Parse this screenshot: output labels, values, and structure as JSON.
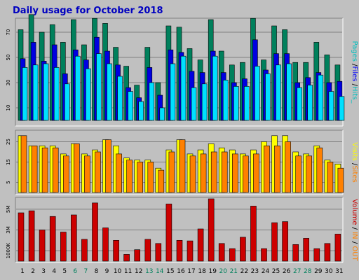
{
  "chart_data": {
    "type": "bar",
    "title": "Daily usage for October 2018",
    "categories": [
      "1",
      "2",
      "3",
      "4",
      "5",
      "6",
      "7",
      "8",
      "9",
      "10",
      "11",
      "12",
      "13",
      "14",
      "15",
      "16",
      "17",
      "18",
      "19",
      "20",
      "21",
      "22",
      "23",
      "24",
      "25",
      "26",
      "27",
      "28",
      "29",
      "30",
      "31"
    ],
    "weekend_days": [
      "6",
      "7",
      "13",
      "14",
      "20",
      "21",
      "27",
      "28"
    ],
    "panels": [
      {
        "id": "pages-files-hits",
        "side_label_parts": [
          {
            "text": "Pages",
            "color": "#00c0c0"
          },
          {
            "text": " /",
            "color": "#000000"
          },
          {
            "text": "Files",
            "color": "#0000ff"
          },
          {
            "text": " /",
            "color": "#000000"
          },
          {
            "text": "Hits_",
            "color": "#00c0c0"
          }
        ],
        "y_ticks": [
          {
            "value": 10,
            "label": "10"
          },
          {
            "value": 30,
            "label": "30"
          },
          {
            "value": 50,
            "label": "50"
          },
          {
            "value": 70,
            "label": "70"
          }
        ],
        "ylim": [
          0,
          80
        ],
        "series": [
          {
            "name": "Hits",
            "color": "#00805c",
            "values": [
              72,
              84,
              70,
              76,
              62,
              80,
              60,
              81,
              77,
              58,
              43,
              28,
              58,
              30,
              75,
              74,
              57,
              48,
              80,
              55,
              44,
              46,
              81,
              48,
              75,
              72,
              46,
              46,
              62,
              52,
              44
            ]
          },
          {
            "name": "Files",
            "color": "#0000e0",
            "values": [
              49,
              62,
              47,
              60,
              37,
              56,
              48,
              66,
              55,
              44,
              26,
              18,
              42,
              20,
              56,
              54,
              39,
              38,
              55,
              38,
              30,
              33,
              64,
              40,
              53,
              53,
              30,
              34,
              38,
              30,
              31
            ]
          },
          {
            "name": "Pages",
            "color": "#00e0ff",
            "values": [
              42,
              44,
              45,
              42,
              29,
              51,
              41,
              53,
              45,
              35,
              23,
              15,
              30,
              10,
              45,
              51,
              26,
              29,
              51,
              32,
              27,
              27,
              43,
              37,
              44,
              45,
              26,
              28,
              36,
              23,
              19
            ]
          }
        ]
      },
      {
        "id": "visits-sites",
        "side_label_parts": [
          {
            "text": "Visits",
            "color": "#ffff00"
          },
          {
            "text": " /",
            "color": "#000000"
          },
          {
            "text": "Sites",
            "color": "#ff8000"
          }
        ],
        "y_ticks": [
          {
            "value": 5,
            "label": "5"
          },
          {
            "value": 15,
            "label": "15"
          },
          {
            "value": 25,
            "label": "25"
          }
        ],
        "ylim": [
          0,
          30
        ],
        "series": [
          {
            "name": "Visits",
            "color": "#ffff00",
            "values": [
              28,
              23,
              23,
              23,
              19,
              24,
              19,
              21,
              26,
              23,
              17,
              16,
              16,
              12,
              21,
              26,
              19,
              21,
              24,
              22,
              21,
              19,
              21,
              25,
              28,
              28,
              20,
              19,
              23,
              16,
              14
            ]
          },
          {
            "name": "Sites",
            "color": "#ff8000",
            "values": [
              28,
              23,
              22,
              22,
              18,
              24,
              18,
              20,
              26,
              19,
              16,
              15,
              15,
              11,
              20,
              26,
              18,
              19,
              20,
              20,
              19,
              18,
              19,
              23,
              23,
              25,
              18,
              18,
              22,
              15,
              12
            ]
          }
        ]
      },
      {
        "id": "volume",
        "side_label_parts": [
          {
            "text": "Volume",
            "color": "#cc0000"
          },
          {
            "text": " / ",
            "color": "#000000"
          },
          {
            "text": "IN",
            "color": "#ff8000"
          },
          {
            "text": " / ",
            "color": "#000000"
          },
          {
            "text": "OUT",
            "color": "#ff8000"
          }
        ],
        "y_ticks": [
          {
            "value": 1000,
            "label": "1000K"
          },
          {
            "value": 3000,
            "label": "3M"
          },
          {
            "value": 5000,
            "label": "5M"
          }
        ],
        "ylim": [
          0,
          6000
        ],
        "series": [
          {
            "name": "Volume",
            "color": "#cc0000",
            "values": [
              4650,
              4850,
              3000,
              4300,
              2800,
              4450,
              2100,
              5600,
              3200,
              2000,
              650,
              1100,
              2100,
              1700,
              5500,
              2000,
              1950,
              3100,
              6000,
              1700,
              1200,
              2300,
              5300,
              1200,
              3700,
              3800,
              1600,
              2200,
              1200,
              1700,
              2600
            ]
          }
        ]
      }
    ]
  }
}
